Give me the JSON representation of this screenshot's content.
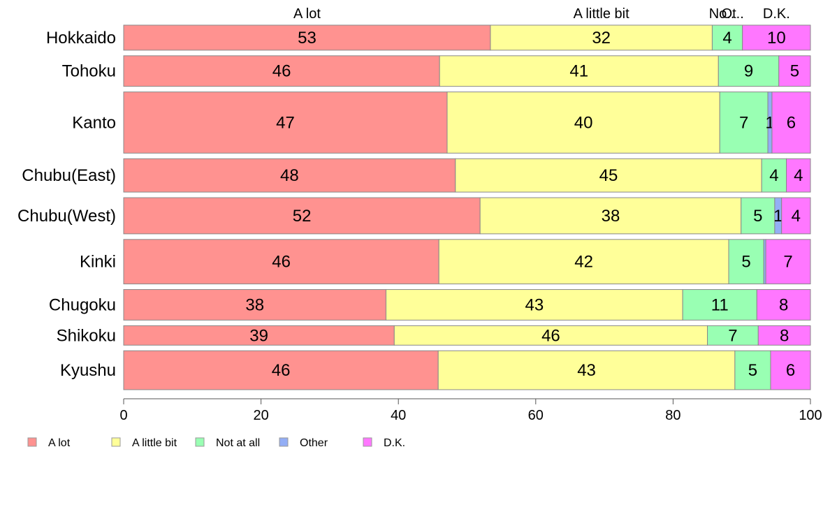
{
  "chart_data": {
    "type": "bar",
    "orientation": "horizontal",
    "stacked": true,
    "categories": [
      "Hokkaido",
      "Tohoku",
      "Kanto",
      "Chubu(East)",
      "Chubu(West)",
      "Kinki",
      "Chugoku",
      "Shikoku",
      "Kyushu"
    ],
    "series": [
      {
        "name": "A lot",
        "color": "#FF9290",
        "values": [
          53.4,
          46.0,
          47.1,
          48.3,
          51.9,
          45.9,
          38.2,
          39.4,
          45.8
        ]
      },
      {
        "name": "A little bit",
        "color": "#FFFF99",
        "values": [
          32.3,
          40.6,
          39.7,
          44.6,
          38.0,
          42.2,
          43.2,
          45.6,
          43.2
        ]
      },
      {
        "name": "Not at all",
        "color": "#99FFB3",
        "values": [
          4.4,
          8.8,
          7.0,
          3.6,
          4.9,
          5.1,
          10.8,
          7.4,
          5.2
        ]
      },
      {
        "name": "Other",
        "color": "#93AEF5",
        "values": [
          0.0,
          0.0,
          0.6,
          0.0,
          1.0,
          0.3,
          0.0,
          0.0,
          0.0
        ]
      },
      {
        "name": "D.K.",
        "color": "#FF77FF",
        "values": [
          9.9,
          4.6,
          5.6,
          3.5,
          4.2,
          6.5,
          7.8,
          7.6,
          5.8
        ]
      }
    ],
    "bar_weights": [
      45,
      55,
      110,
      60,
      65,
      80,
      55,
      35,
      70
    ],
    "top_labels": [
      "A lot",
      "A little bit",
      "No..",
      "Ot..",
      "D.K."
    ],
    "xlim": [
      0,
      100
    ],
    "xticks": [
      0,
      20,
      40,
      60,
      80,
      100
    ],
    "grid": false,
    "legend_position": "bottom-left"
  }
}
